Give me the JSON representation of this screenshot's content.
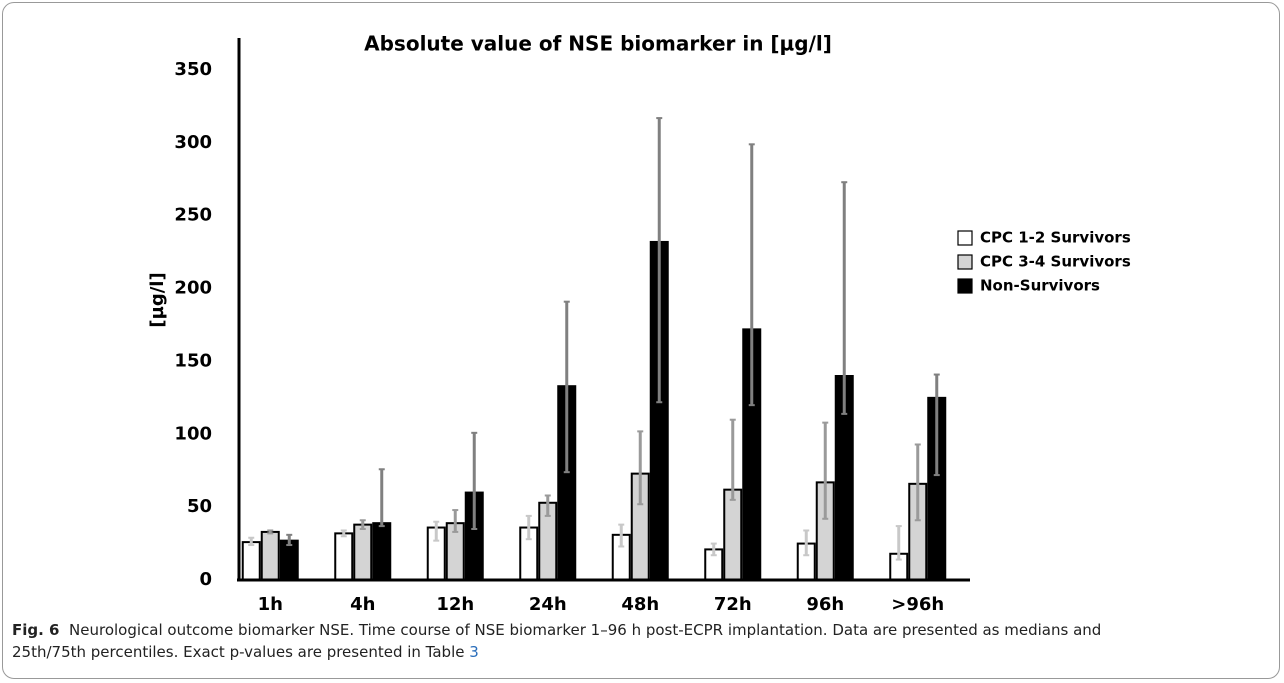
{
  "chart_data": {
    "type": "bar",
    "title": "Absolute value of NSE biomarker in [µg/l]",
    "y_label": "[µg/l]",
    "categories": [
      "1h",
      "4h",
      "12h",
      "24h",
      "48h",
      "72h",
      "96h",
      ">96h"
    ],
    "series": [
      {
        "name": "CPC 1-2 Survivors",
        "color": "#ffffff",
        "error_color": "#c8c8c8",
        "values": [
          26,
          32,
          36,
          36,
          31,
          21,
          25,
          18
        ],
        "low": [
          24,
          30,
          27,
          28,
          23,
          17,
          17,
          14
        ],
        "high": [
          29,
          34,
          40,
          44,
          38,
          25,
          34,
          37
        ]
      },
      {
        "name": "CPC 3-4 Survivors",
        "color": "#d4d4d4",
        "error_color": "#9a9a9a",
        "values": [
          33,
          38,
          39,
          53,
          73,
          62,
          67,
          66
        ],
        "low": [
          32,
          35,
          33,
          44,
          52,
          55,
          42,
          41
        ],
        "high": [
          34,
          41,
          48,
          58,
          102,
          110,
          108,
          93
        ]
      },
      {
        "name": "Non-Survivors",
        "color": "#000000",
        "error_color": "#808080",
        "values": [
          27,
          39,
          60,
          133,
          232,
          172,
          140,
          125
        ],
        "low": [
          24,
          37,
          35,
          74,
          122,
          120,
          114,
          72
        ],
        "high": [
          31,
          76,
          101,
          191,
          317,
          299,
          273,
          141
        ]
      }
    ],
    "ylim": [
      0,
      350
    ],
    "yticks": [
      0,
      50,
      100,
      150,
      200,
      250,
      300,
      350
    ],
    "grid": false,
    "legend": "right"
  },
  "caption": {
    "label": "Fig. 6",
    "text": "Neurological outcome biomarker NSE. Time course of NSE biomarker 1–96 h post-ECPR implantation. Data are presented as medians and 25th/75th percentiles. Exact p-values are presented in Table ",
    "link": "3"
  }
}
